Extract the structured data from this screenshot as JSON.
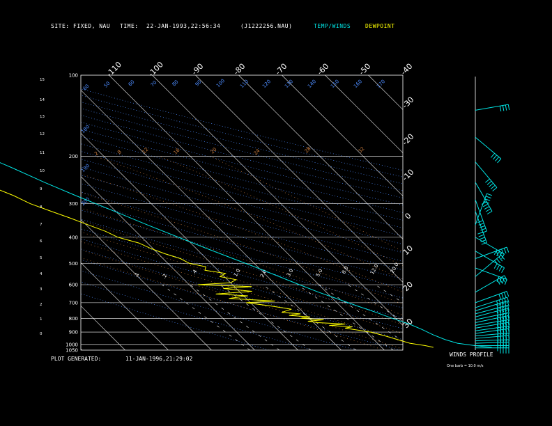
{
  "header": {
    "site_label": "SITE:",
    "site_value": "FIXED, NAU",
    "time_label": "TIME:",
    "time_value": "22-JAN-1993,22:56:34",
    "file_id": "(J1222256.NAU)",
    "legend_temp": "TEMP/WINDS",
    "legend_dew": "DEWPOINT"
  },
  "footer": {
    "generated_label": "PLOT GENERATED:",
    "generated_value": "11-JAN-1996,21:29:02",
    "winds_title": "WINDS PROFILE",
    "barb_note": "One barb = 10.0 m/s"
  },
  "colors": {
    "background": "#000000",
    "grid": "#ffffff",
    "temperature": "#00e5e5",
    "dewpoint": "#ffff00",
    "mixing_ratio": "#d08040",
    "dry_adiabat": "#4d8cff",
    "moist_adiabat": "#d08040"
  },
  "chart_data": {
    "type": "line",
    "diagram": "skew-T log-P",
    "y_axis_pressure_labels": [
      "100",
      "200",
      "300",
      "400",
      "500",
      "600",
      "700",
      "800",
      "900",
      "1000",
      "1050"
    ],
    "y_axis_height_km_labels": [
      "15",
      "14",
      "13",
      "12",
      "11",
      "10",
      "9",
      "8",
      "7",
      "6",
      "5",
      "4",
      "3",
      "2",
      "1",
      "0"
    ],
    "top_temperature_labels": [
      "-110",
      "-100",
      "-90",
      "-80",
      "-70",
      "-60",
      "-50",
      "-40"
    ],
    "right_temperature_labels": [
      "-30",
      "-20",
      "-10",
      "0",
      "10",
      "20",
      "30"
    ],
    "adiabat_labels": [
      "60",
      "50",
      "60",
      "70",
      "80",
      "90",
      "100",
      "110",
      "120",
      "130",
      "140",
      "150",
      "160",
      "170",
      "180",
      "190",
      "200"
    ],
    "mixing_ratio_labels": [
      ".1",
      ".2",
      ".4",
      "1.0",
      "2.0",
      "3.0",
      "5.0",
      "8.0",
      "12.0",
      "20.0"
    ],
    "upper_mix_labels": [
      "2",
      "8",
      "12",
      "16",
      "20",
      "24",
      "28",
      "32"
    ],
    "pressure_range_hpa": [
      1050,
      100
    ],
    "temperature_range_c": [
      -40,
      35
    ],
    "series": [
      {
        "name": "TEMP/WINDS",
        "points": [
          {
            "p": 1025,
            "t": 15.5
          },
          {
            "p": 1010,
            "t": 12.0
          },
          {
            "p": 990,
            "t": 8.5
          },
          {
            "p": 960,
            "t": 6.5
          },
          {
            "p": 920,
            "t": 4.8
          },
          {
            "p": 880,
            "t": 3.5
          },
          {
            "p": 840,
            "t": 1.8
          },
          {
            "p": 800,
            "t": -0.8
          },
          {
            "p": 760,
            "t": -3.2
          },
          {
            "p": 720,
            "t": -6.0
          },
          {
            "p": 680,
            "t": -8.8
          },
          {
            "p": 640,
            "t": -11.8
          },
          {
            "p": 600,
            "t": -14.5
          },
          {
            "p": 560,
            "t": -17.3
          },
          {
            "p": 520,
            "t": -20.3
          },
          {
            "p": 480,
            "t": -23.8
          },
          {
            "p": 440,
            "t": -27.6
          },
          {
            "p": 400,
            "t": -31.5
          },
          {
            "p": 360,
            "t": -35.8
          },
          {
            "p": 320,
            "t": -40.3
          },
          {
            "p": 280,
            "t": -45.6
          },
          {
            "p": 250,
            "t": -49.8
          },
          {
            "p": 220,
            "t": -54.0
          },
          {
            "p": 200,
            "t": -57.5
          },
          {
            "p": 180,
            "t": -60.0
          },
          {
            "p": 160,
            "t": -62.5
          },
          {
            "p": 140,
            "t": -64.5
          },
          {
            "p": 120,
            "t": -66.5
          },
          {
            "p": 110,
            "t": -65.5
          },
          {
            "p": 100,
            "t": -65.0
          }
        ]
      },
      {
        "name": "DEWPOINT",
        "points": [
          {
            "p": 1025,
            "t": 2.0
          },
          {
            "p": 1010,
            "t": 0.5
          },
          {
            "p": 990,
            "t": -2.5
          },
          {
            "p": 960,
            "t": -4.5
          },
          {
            "p": 930,
            "t": -6.5
          },
          {
            "p": 900,
            "t": -9.0
          },
          {
            "p": 870,
            "t": -14.0
          },
          {
            "p": 860,
            "t": -12.0
          },
          {
            "p": 850,
            "t": -17.0
          },
          {
            "p": 840,
            "t": -13.0
          },
          {
            "p": 830,
            "t": -19.0
          },
          {
            "p": 820,
            "t": -21.0
          },
          {
            "p": 810,
            "t": -17.0
          },
          {
            "p": 800,
            "t": -22.0
          },
          {
            "p": 790,
            "t": -19.5
          },
          {
            "p": 780,
            "t": -24.0
          },
          {
            "p": 770,
            "t": -21.0
          },
          {
            "p": 760,
            "t": -25.0
          },
          {
            "p": 740,
            "t": -22.0
          },
          {
            "p": 720,
            "t": -26.0
          },
          {
            "p": 700,
            "t": -31.0
          },
          {
            "p": 690,
            "t": -24.0
          },
          {
            "p": 675,
            "t": -34.0
          },
          {
            "p": 660,
            "t": -29.0
          },
          {
            "p": 650,
            "t": -36.0
          },
          {
            "p": 635,
            "t": -27.0
          },
          {
            "p": 620,
            "t": -33.0
          },
          {
            "p": 610,
            "t": -26.0
          },
          {
            "p": 600,
            "t": -38.0
          },
          {
            "p": 590,
            "t": -30.0
          },
          {
            "p": 575,
            "t": -28.0
          },
          {
            "p": 560,
            "t": -31.0
          },
          {
            "p": 545,
            "t": -29.0
          },
          {
            "p": 530,
            "t": -33.0
          },
          {
            "p": 515,
            "t": -32.0
          },
          {
            "p": 500,
            "t": -35.0
          },
          {
            "p": 480,
            "t": -36.0
          },
          {
            "p": 460,
            "t": -38.5
          },
          {
            "p": 440,
            "t": -40.5
          },
          {
            "p": 420,
            "t": -42.0
          },
          {
            "p": 400,
            "t": -45.5
          },
          {
            "p": 380,
            "t": -47.0
          },
          {
            "p": 360,
            "t": -49.5
          },
          {
            "p": 340,
            "t": -52.0
          },
          {
            "p": 320,
            "t": -55.0
          },
          {
            "p": 300,
            "t": -58.0
          },
          {
            "p": 280,
            "t": -60.0
          },
          {
            "p": 260,
            "t": -63.0
          },
          {
            "p": 240,
            "t": -66.0
          },
          {
            "p": 220,
            "t": -69.0
          },
          {
            "p": 200,
            "t": -72.0
          },
          {
            "p": 180,
            "t": -75.0
          },
          {
            "p": 160,
            "t": -78.5
          },
          {
            "p": 140,
            "t": -81.0
          },
          {
            "p": 120,
            "t": -84.0
          },
          {
            "p": 110,
            "t": -85.0
          },
          {
            "p": 100,
            "t": -85.0
          }
        ]
      }
    ],
    "winds": [
      {
        "p": 1030,
        "dir": 270,
        "spd": 40
      },
      {
        "p": 1010,
        "dir": 270,
        "spd": 45
      },
      {
        "p": 990,
        "dir": 268,
        "spd": 45
      },
      {
        "p": 970,
        "dir": 268,
        "spd": 45
      },
      {
        "p": 950,
        "dir": 265,
        "spd": 45
      },
      {
        "p": 930,
        "dir": 265,
        "spd": 45
      },
      {
        "p": 910,
        "dir": 262,
        "spd": 45
      },
      {
        "p": 890,
        "dir": 262,
        "spd": 45
      },
      {
        "p": 870,
        "dir": 260,
        "spd": 45
      },
      {
        "p": 850,
        "dir": 260,
        "spd": 45
      },
      {
        "p": 830,
        "dir": 258,
        "spd": 45
      },
      {
        "p": 810,
        "dir": 258,
        "spd": 45
      },
      {
        "p": 790,
        "dir": 255,
        "spd": 45
      },
      {
        "p": 770,
        "dir": 255,
        "spd": 45
      },
      {
        "p": 750,
        "dir": 253,
        "spd": 45
      },
      {
        "p": 730,
        "dir": 252,
        "spd": 45
      },
      {
        "p": 700,
        "dir": 250,
        "spd": 40
      },
      {
        "p": 640,
        "dir": 240,
        "spd": 40
      },
      {
        "p": 560,
        "dir": 230,
        "spd": 40
      },
      {
        "p": 520,
        "dir": 290,
        "spd": 35
      },
      {
        "p": 480,
        "dir": 250,
        "spd": 45
      },
      {
        "p": 450,
        "dir": 300,
        "spd": 35
      },
      {
        "p": 400,
        "dir": 300,
        "spd": 35
      },
      {
        "p": 360,
        "dir": 200,
        "spd": 35
      },
      {
        "p": 320,
        "dir": 340,
        "spd": 45
      },
      {
        "p": 290,
        "dir": 340,
        "spd": 45
      },
      {
        "p": 250,
        "dir": 330,
        "spd": 45
      },
      {
        "p": 210,
        "dir": 320,
        "spd": 45
      },
      {
        "p": 170,
        "dir": 310,
        "spd": 40
      },
      {
        "p": 135,
        "dir": 260,
        "spd": 40
      }
    ]
  }
}
